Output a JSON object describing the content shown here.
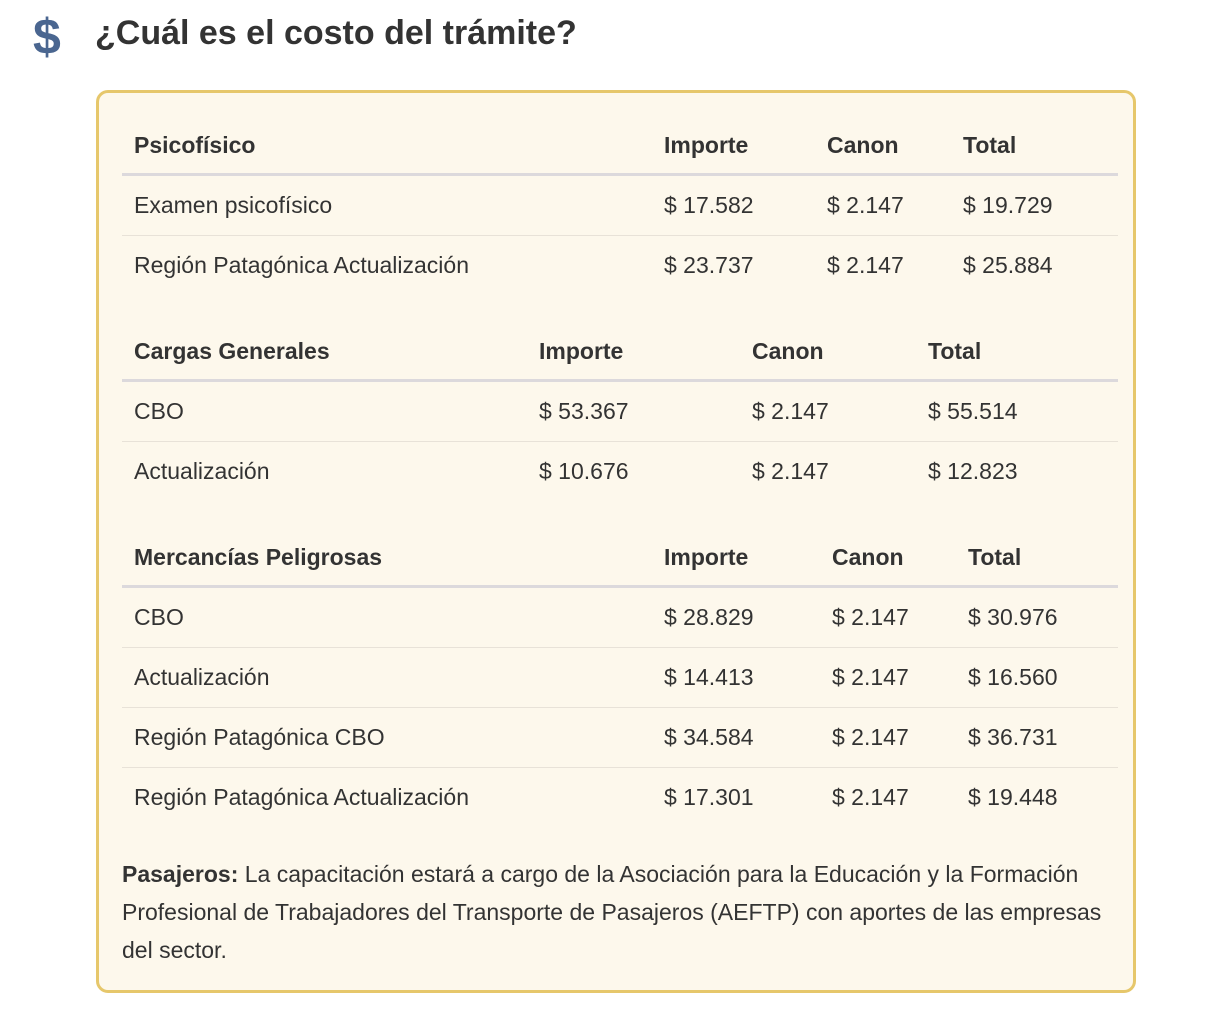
{
  "header": {
    "icon": "$",
    "title": "¿Cuál es el costo del trámite?"
  },
  "tables": [
    {
      "header": [
        "Psicofísico",
        "Importe",
        "Canon",
        "Total"
      ],
      "rows": [
        [
          "Examen psicofísico",
          "$ 17.582",
          "$ 2.147",
          "$ 19.729"
        ],
        [
          "Región Patagónica Actualización",
          "$ 23.737",
          "$ 2.147",
          "$ 25.884"
        ]
      ]
    },
    {
      "header": [
        "Cargas Generales",
        "Importe",
        "Canon",
        "Total"
      ],
      "rows": [
        [
          "CBO",
          "$ 53.367",
          "$ 2.147",
          "$ 55.514"
        ],
        [
          "Actualización",
          "$ 10.676",
          "$ 2.147",
          "$ 12.823"
        ]
      ]
    },
    {
      "header": [
        "Mercancías Peligrosas",
        "Importe",
        "Canon",
        "Total"
      ],
      "rows": [
        [
          "CBO",
          "$ 28.829",
          "$ 2.147",
          "$ 30.976"
        ],
        [
          "Actualización",
          "$ 14.413",
          "$ 2.147",
          "$ 16.560"
        ],
        [
          "Región Patagónica CBO",
          "$ 34.584",
          "$ 2.147",
          "$ 36.731"
        ],
        [
          "Región Patagónica Actualización",
          "$ 17.301",
          "$ 2.147",
          "$ 19.448"
        ]
      ]
    }
  ],
  "note": {
    "label": "Pasajeros:",
    "text": "La capacitación estará a cargo de la Asociación para la Educación y la Formación Profesional de Trabajadores del Transporte de Pasajeros (AEFTP) con aportes de las empresas del sector."
  }
}
